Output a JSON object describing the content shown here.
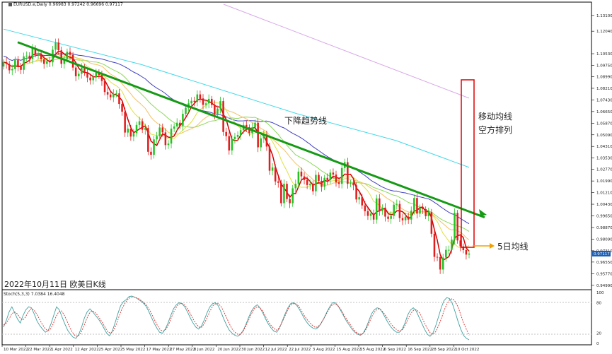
{
  "header": {
    "title": "EURUSD.e,Daily",
    "ohlc": "0.96983 0.97242 0.96696 0.97117"
  },
  "stoch_label": "Stoch(5,3,3) 7.0384 16.4048",
  "annotations": {
    "trend_label": "下降趋势线",
    "ma_label": [
      "移动均线",
      "空方排列"
    ],
    "ma5_label": "5日均线",
    "caption": "2022年10月11日 欧美日K线"
  },
  "colors": {
    "bull": "#22c322",
    "bear": "#e11d1d",
    "trendline": "#159a15",
    "ma5": "#d40000",
    "ma10": "#e0e040",
    "ma20": "#f5c060",
    "ma30": "#8cd85a",
    "ma60": "#4040c0",
    "ma120": "#40d8e8",
    "ma200": "#d8a8e8",
    "stoch_main": "#40a0a0",
    "stoch_signal": "#e03030",
    "box": "#e00000",
    "arrow": "#f0a000"
  },
  "chart_data": [
    {
      "type": "candlestick",
      "title": "EURUSD.e,Daily",
      "ylim": [
        0.9479,
        1.1385
      ],
      "yticks": [
        "1.13100",
        "1.12040",
        "1.10530",
        "1.09750",
        "1.08990",
        "1.08210",
        "1.07430",
        "1.06650",
        "1.05870",
        "1.05090",
        "1.04310",
        "1.03530",
        "1.02770",
        "1.01990",
        "1.01210",
        "1.00430",
        "0.99650",
        "0.98870",
        "0.98090",
        "0.97310",
        "0.96550",
        "0.95770",
        "0.94990"
      ],
      "xticks": [
        "10 Mar 2022",
        "22 Mar 2022",
        "1 Apr 2022",
        "12 Apr 2022",
        "25 Apr 2022",
        "5 May 2022",
        "17 May 2022",
        "27 May 2022",
        "8 Jun 2022",
        "20 Jun 2022",
        "30 Jun 2022",
        "12 Jul 2022",
        "22 Jul 2022",
        "3 Aug 2022",
        "15 Aug 2022",
        "25 Aug 2022",
        "6 Sep 2022",
        "16 Sep 2022",
        "28 Sep 2022",
        "10 Oct 2022"
      ],
      "current_price": "0.97117",
      "close": [
        1.0997,
        1.0985,
        1.0942,
        1.095,
        1.101,
        1.0965,
        1.0945,
        1.1035,
        1.104,
        1.1018,
        1.1089,
        1.105,
        1.1052,
        1.1015,
        1.0985,
        1.1,
        1.0995,
        1.108,
        1.1128,
        1.1076,
        1.0985,
        1.1018,
        1.1066,
        1.1045,
        1.096,
        1.0902,
        1.0918,
        1.096,
        1.093,
        1.0893,
        1.0875,
        1.0897,
        1.0925,
        1.091,
        1.087,
        1.0796,
        1.0779,
        1.0761,
        1.0785,
        1.0787,
        1.0716,
        1.0664,
        1.0524,
        1.055,
        1.0497,
        1.052,
        1.0575,
        1.06,
        1.0543,
        1.0554,
        1.0395,
        1.0375,
        1.0478,
        1.05,
        1.0558,
        1.0525,
        1.044,
        1.045,
        1.055,
        1.0565,
        1.059,
        1.057,
        1.065,
        1.069,
        1.072,
        1.0737,
        1.073,
        1.078,
        1.0753,
        1.071,
        1.072,
        1.075,
        1.071,
        1.0645,
        1.0685,
        1.0735,
        1.0528,
        1.05,
        1.0404,
        1.048,
        1.0495,
        1.0508,
        1.054,
        1.0575,
        1.056,
        1.052,
        1.0559,
        1.059,
        1.0425,
        1.0485,
        1.051,
        1.043,
        1.0268,
        1.029,
        1.0196,
        1.0187,
        1.005,
        1.018,
        1.0078,
        1.005,
        1.015,
        1.018,
        1.0262,
        1.023,
        1.0206,
        1.0172,
        1.018,
        1.013,
        1.024,
        1.02,
        1.016,
        1.022,
        1.0205,
        1.0255,
        1.0242,
        1.019,
        1.018,
        1.0286,
        1.0325,
        1.018,
        1.0186,
        1.017,
        1.0075,
        1.009,
        1.0035,
        0.9996,
        0.9965,
        0.998,
        0.994,
        1.0082,
        0.9997,
        1.002,
        0.996,
        0.9945,
        0.9965,
        1.004,
        1.0045,
        0.995,
        0.9935,
        0.996,
        0.994,
        1.0,
        1.0085,
        0.998,
        1.002,
        1.001,
        0.9963,
        0.999,
        0.9845,
        0.969,
        0.9688,
        0.9605,
        0.9685,
        0.9737,
        0.9737,
        0.9805,
        0.9985,
        0.98,
        0.976,
        0.9735,
        0.9705,
        0.9712
      ],
      "ma_lines": [
        {
          "name": "MA5",
          "color_key": "ma5"
        },
        {
          "name": "MA10",
          "color_key": "ma10"
        },
        {
          "name": "MA20",
          "color_key": "ma20"
        },
        {
          "name": "MA30",
          "color_key": "ma30"
        },
        {
          "name": "MA60",
          "color_key": "ma60"
        },
        {
          "name": "MA120",
          "color_key": "ma120"
        },
        {
          "name": "MA200",
          "color_key": "ma200"
        }
      ],
      "trendline": {
        "from": [
          "10 Mar 2022",
          1.113
        ],
        "to": [
          "12 Oct 2022",
          0.9955
        ]
      }
    },
    {
      "type": "line",
      "title": "Stoch(5,3,3) 7.0384 16.4048",
      "ylim": [
        0,
        100
      ],
      "yticks": [
        "100",
        "80",
        "20",
        "0"
      ],
      "series": [
        {
          "name": "main",
          "values": [
            32,
            45,
            62,
            72,
            60,
            48,
            40,
            55,
            66,
            72,
            70,
            58,
            44,
            35,
            28,
            22,
            25,
            38,
            55,
            72,
            66,
            52,
            38,
            26,
            18,
            12,
            10,
            18,
            32,
            50,
            62,
            68,
            62,
            55,
            48,
            40,
            30,
            20,
            15,
            24,
            40,
            58,
            74,
            82,
            86,
            92,
            93,
            91,
            88,
            84,
            80,
            74,
            64,
            52,
            40,
            30,
            22,
            20,
            28,
            40,
            55,
            68,
            76,
            80,
            78,
            72,
            62,
            50,
            40,
            32,
            28,
            34,
            46,
            60,
            72,
            78,
            80,
            74,
            62,
            48,
            36,
            26,
            20,
            16,
            14,
            18,
            26,
            38,
            52,
            64,
            72,
            76,
            70,
            60,
            48,
            38,
            30,
            24,
            22,
            30,
            44,
            58,
            70,
            78,
            80,
            76,
            68,
            58,
            48,
            40,
            34,
            30,
            28,
            32,
            40,
            50,
            62,
            72,
            80,
            80,
            74,
            64,
            54,
            44,
            36,
            28,
            22,
            18,
            16,
            20,
            30,
            44,
            58,
            66,
            70,
            68,
            60,
            50,
            40,
            32,
            26,
            22,
            22,
            28,
            40,
            56,
            66,
            70,
            64,
            52,
            40,
            28,
            18,
            14,
            20,
            34,
            52,
            70,
            84,
            90,
            88,
            78,
            62,
            44,
            28,
            16,
            10,
            7
          ],
          "color_key": "stoch_main"
        },
        {
          "name": "signal",
          "values": [
            36,
            40,
            48,
            58,
            62,
            58,
            50,
            46,
            52,
            62,
            68,
            66,
            58,
            48,
            38,
            30,
            25,
            28,
            38,
            52,
            62,
            64,
            56,
            44,
            32,
            22,
            15,
            14,
            20,
            32,
            46,
            58,
            64,
            62,
            56,
            48,
            40,
            30,
            22,
            20,
            26,
            38,
            54,
            68,
            78,
            86,
            90,
            92,
            90,
            88,
            84,
            80,
            74,
            66,
            56,
            44,
            34,
            26,
            24,
            28,
            38,
            52,
            64,
            74,
            78,
            78,
            74,
            66,
            56,
            46,
            38,
            32,
            32,
            40,
            52,
            64,
            74,
            78,
            78,
            72,
            62,
            50,
            38,
            28,
            22,
            18,
            18,
            24,
            34,
            46,
            58,
            68,
            72,
            70,
            64,
            54,
            44,
            36,
            30,
            26,
            30,
            40,
            52,
            64,
            74,
            78,
            78,
            74,
            66,
            56,
            48,
            42,
            36,
            32,
            32,
            38,
            46,
            56,
            66,
            74,
            78,
            76,
            70,
            62,
            52,
            44,
            36,
            28,
            22,
            18,
            18,
            22,
            32,
            44,
            56,
            64,
            68,
            66,
            60,
            52,
            44,
            36,
            30,
            26,
            24,
            28,
            38,
            50,
            60,
            66,
            66,
            60,
            50,
            38,
            28,
            20,
            18,
            24,
            36,
            50,
            66,
            78,
            86,
            88,
            82,
            72,
            56,
            40,
            28,
            16
          ],
          "color_key": "stoch_signal"
        }
      ],
      "xticks": [
        "10 Mar 2022",
        "22 Mar 2022",
        "1 Apr 2022",
        "12 Apr 2022",
        "25 Apr 2022",
        "5 May 2022",
        "17 May 2022",
        "27 May 2022",
        "8 Jun 2022",
        "20 Jun 2022",
        "30 Jun 2022",
        "12 Jul 2022",
        "22 Jul 2022",
        "3 Aug 2022",
        "15 Aug 2022",
        "25 Aug 2022",
        "6 Sep 2022",
        "16 Sep 2022",
        "28 Sep 2022",
        "10 Oct 2022"
      ]
    }
  ]
}
